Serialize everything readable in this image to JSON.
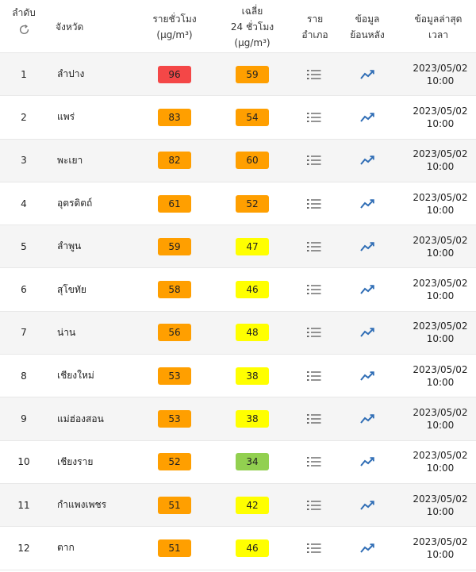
{
  "header": {
    "rank": "ลำดับ",
    "province": "จังหวัด",
    "hourly_line1": "รายชั่วโมง",
    "hourly_line2": "(µg/m³)",
    "avg_line1": "เฉลี่ย",
    "avg_line2": "24 ชั่วโมง",
    "avg_line3": "(µg/m³)",
    "district_line1": "ราย",
    "district_line2": "อำเภอ",
    "history_line1": "ข้อมูล",
    "history_line2": "ย้อนหลัง",
    "latest_line1": "ข้อมูลล่าสุด",
    "latest_line2": "เวลา"
  },
  "icons": {
    "refresh": "refresh-icon",
    "district": "list-icon",
    "history": "trend-chart-icon"
  },
  "colors": {
    "red": "#f44747",
    "orange": "#ff9f00",
    "yellow": "#ffff00",
    "green": "#92d050",
    "icon_blue": "#2f6db5"
  },
  "rows": [
    {
      "rank": "1",
      "province": "ลำปาง",
      "hourly": "96",
      "hourly_color": "#f44747",
      "avg": "59",
      "avg_color": "#ff9f00",
      "date": "2023/05/02",
      "time": "10:00"
    },
    {
      "rank": "2",
      "province": "แพร่",
      "hourly": "83",
      "hourly_color": "#ff9f00",
      "avg": "54",
      "avg_color": "#ff9f00",
      "date": "2023/05/02",
      "time": "10:00"
    },
    {
      "rank": "3",
      "province": "พะเยา",
      "hourly": "82",
      "hourly_color": "#ff9f00",
      "avg": "60",
      "avg_color": "#ff9f00",
      "date": "2023/05/02",
      "time": "10:00"
    },
    {
      "rank": "4",
      "province": "อุตรดิตถ์",
      "hourly": "61",
      "hourly_color": "#ff9f00",
      "avg": "52",
      "avg_color": "#ff9f00",
      "date": "2023/05/02",
      "time": "10:00"
    },
    {
      "rank": "5",
      "province": "ลำพูน",
      "hourly": "59",
      "hourly_color": "#ff9f00",
      "avg": "47",
      "avg_color": "#ffff00",
      "date": "2023/05/02",
      "time": "10:00"
    },
    {
      "rank": "6",
      "province": "สุโขทัย",
      "hourly": "58",
      "hourly_color": "#ff9f00",
      "avg": "46",
      "avg_color": "#ffff00",
      "date": "2023/05/02",
      "time": "10:00"
    },
    {
      "rank": "7",
      "province": "น่าน",
      "hourly": "56",
      "hourly_color": "#ff9f00",
      "avg": "48",
      "avg_color": "#ffff00",
      "date": "2023/05/02",
      "time": "10:00"
    },
    {
      "rank": "8",
      "province": "เชียงใหม่",
      "hourly": "53",
      "hourly_color": "#ff9f00",
      "avg": "38",
      "avg_color": "#ffff00",
      "date": "2023/05/02",
      "time": "10:00"
    },
    {
      "rank": "9",
      "province": "แม่ฮ่องสอน",
      "hourly": "53",
      "hourly_color": "#ff9f00",
      "avg": "38",
      "avg_color": "#ffff00",
      "date": "2023/05/02",
      "time": "10:00"
    },
    {
      "rank": "10",
      "province": "เชียงราย",
      "hourly": "52",
      "hourly_color": "#ff9f00",
      "avg": "34",
      "avg_color": "#92d050",
      "date": "2023/05/02",
      "time": "10:00"
    },
    {
      "rank": "11",
      "province": "กำแพงเพชร",
      "hourly": "51",
      "hourly_color": "#ff9f00",
      "avg": "42",
      "avg_color": "#ffff00",
      "date": "2023/05/02",
      "time": "10:00"
    },
    {
      "rank": "12",
      "province": "ตาก",
      "hourly": "51",
      "hourly_color": "#ff9f00",
      "avg": "46",
      "avg_color": "#ffff00",
      "date": "2023/05/02",
      "time": "10:00"
    }
  ]
}
